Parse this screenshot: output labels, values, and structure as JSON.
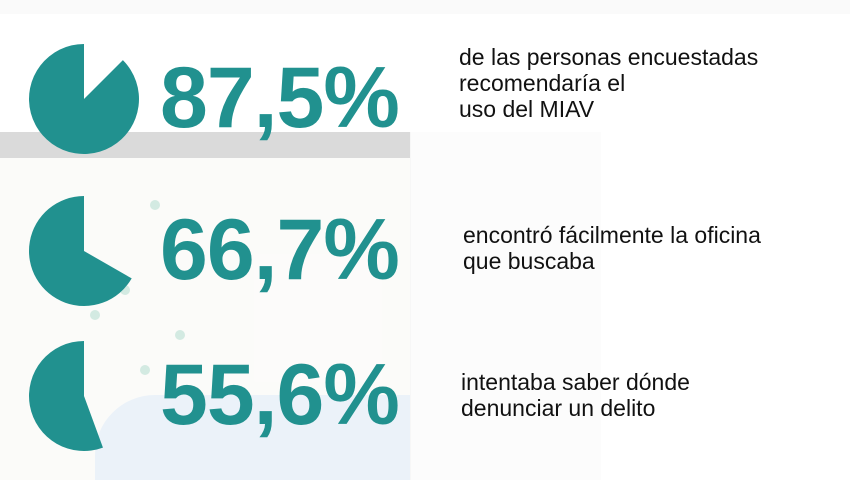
{
  "chart_data": {
    "type": "pie",
    "accent_color": "#21918f",
    "items": [
      {
        "value": 87.5,
        "label": "87,5%",
        "description": [
          "de las personas encuestadas",
          "recomendaría el",
          "uso del MIAV"
        ]
      },
      {
        "value": 66.7,
        "label": "66,7%",
        "description": [
          "encontró fácilmente la oficina",
          "que buscaba"
        ]
      },
      {
        "value": 55.6,
        "label": "55,6%",
        "description": [
          "intentaba saber dónde",
          "denunciar un delito"
        ]
      }
    ]
  }
}
